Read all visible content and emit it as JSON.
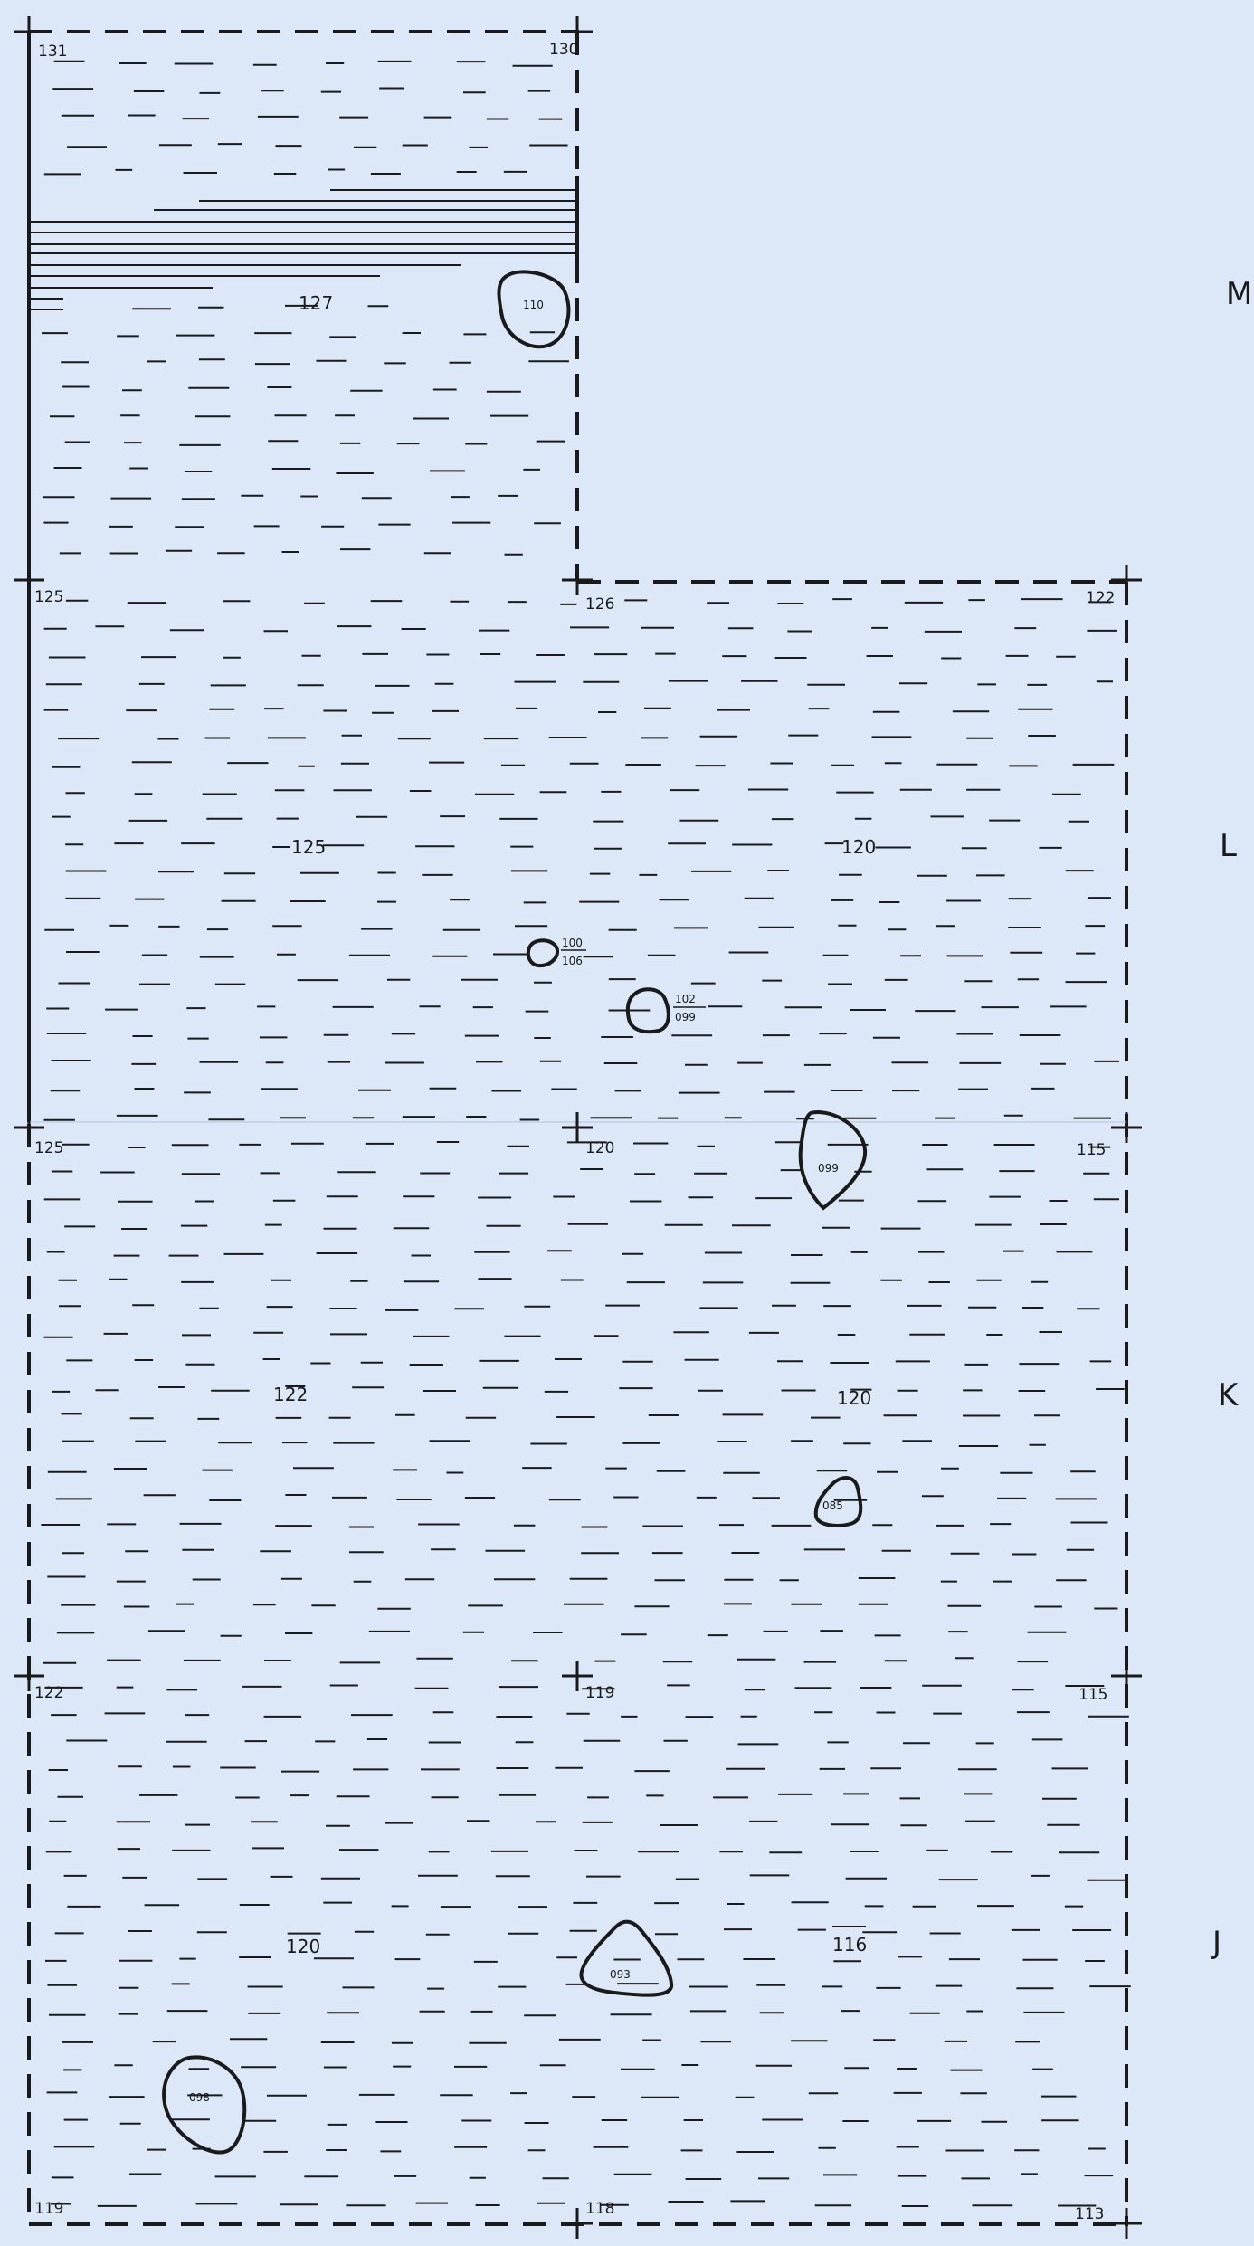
{
  "plan": {
    "background": "#dce8f7",
    "ink": "#1a1a1a"
  },
  "survey_points": [
    {
      "id": "sp-131",
      "label": "131"
    },
    {
      "id": "sp-130",
      "label": "130"
    },
    {
      "id": "sp-125a",
      "label": "125"
    },
    {
      "id": "sp-126",
      "label": "126"
    },
    {
      "id": "sp-122a",
      "label": "122"
    },
    {
      "id": "sp-125b",
      "label": "125"
    },
    {
      "id": "sp-120",
      "label": "120"
    },
    {
      "id": "sp-115a",
      "label": "115"
    },
    {
      "id": "sp-122b",
      "label": "122"
    },
    {
      "id": "sp-119",
      "label": "119"
    },
    {
      "id": "sp-115b",
      "label": "115"
    },
    {
      "id": "sp-119b",
      "label": "119"
    },
    {
      "id": "sp-118",
      "label": "118"
    },
    {
      "id": "sp-113",
      "label": "113"
    }
  ],
  "elevations": [
    {
      "id": "el-127",
      "label": "127"
    },
    {
      "id": "el-125",
      "label": "125"
    },
    {
      "id": "el-120-l",
      "label": "120"
    },
    {
      "id": "el-122",
      "label": "122"
    },
    {
      "id": "el-120-k",
      "label": "120"
    },
    {
      "id": "el-120-j",
      "label": "120"
    },
    {
      "id": "el-116",
      "label": "116"
    }
  ],
  "features": [
    {
      "id": "ft-110",
      "label": "110"
    },
    {
      "id": "ft-100",
      "label": "100",
      "sub": "106"
    },
    {
      "id": "ft-102",
      "label": "102",
      "sub": "099"
    },
    {
      "id": "ft-099",
      "label": "099"
    },
    {
      "id": "ft-085",
      "label": "085"
    },
    {
      "id": "ft-093",
      "label": "093"
    },
    {
      "id": "ft-098",
      "label": "098"
    }
  ],
  "grid_rows": [
    "M",
    "L",
    "K",
    "J"
  ]
}
